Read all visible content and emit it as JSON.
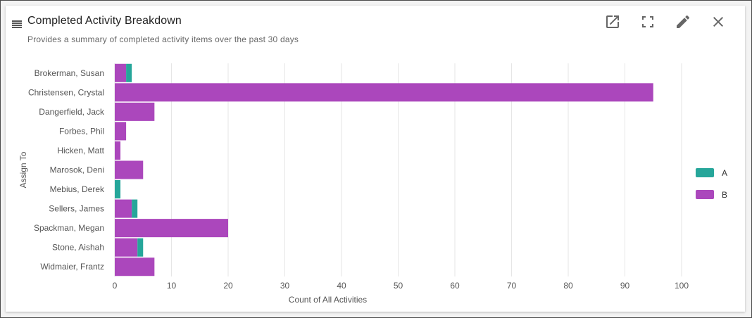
{
  "header": {
    "title": "Completed Activity Breakdown",
    "subtitle": "Provides a summary of completed activity items over the past 30 days"
  },
  "toolbar": {
    "icons": [
      "open-in-new-icon",
      "fullscreen-icon",
      "edit-pencil-icon",
      "close-icon"
    ]
  },
  "colors": {
    "A": "#26a69a",
    "B": "#ab47bc",
    "grid": "#e6e6e6",
    "text": "#555555"
  },
  "chart_data": {
    "type": "bar",
    "orientation": "horizontal",
    "stacked": true,
    "categories": [
      "Brokerman, Susan",
      "Christensen, Crystal",
      "Dangerfield, Jack",
      "Forbes, Phil",
      "Hicken, Matt",
      "Marosok, Deni",
      "Mebius, Derek",
      "Sellers, James",
      "Spackman, Megan",
      "Stone, Aishah",
      "Widmaier, Frantz"
    ],
    "series": [
      {
        "name": "B",
        "values": [
          2,
          95,
          7,
          2,
          1,
          5,
          0,
          3,
          20,
          4,
          7
        ]
      },
      {
        "name": "A",
        "values": [
          1,
          0,
          0,
          0,
          0,
          0,
          1,
          1,
          0,
          1,
          0
        ]
      }
    ],
    "xlabel": "Count of All Activities",
    "ylabel": "Assign To",
    "xlim": [
      0,
      100
    ],
    "xticks": [
      0,
      10,
      20,
      30,
      40,
      50,
      60,
      70,
      80,
      90,
      100
    ],
    "grid": "vertical",
    "legend_position": "right",
    "legend": [
      "A",
      "B"
    ]
  }
}
